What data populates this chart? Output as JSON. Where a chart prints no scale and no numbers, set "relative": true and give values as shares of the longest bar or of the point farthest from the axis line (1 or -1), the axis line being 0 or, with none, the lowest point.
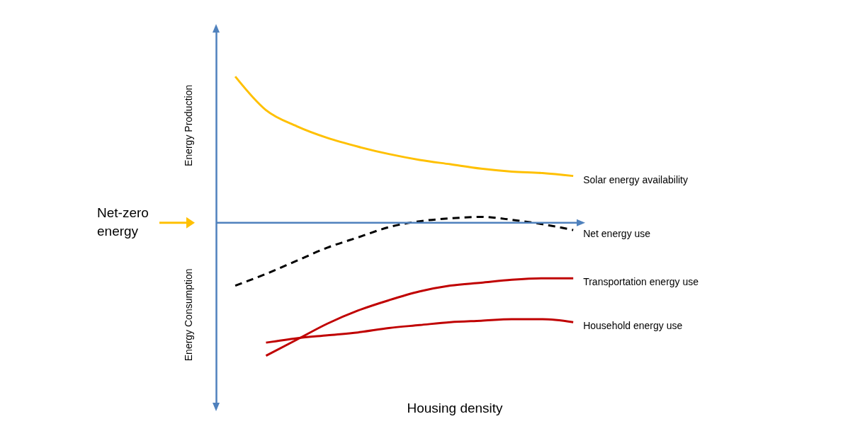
{
  "chart_data": {
    "type": "line",
    "relative": true,
    "xlabel": "Housing density",
    "categories": [
      null,
      null,
      null,
      null,
      null,
      null,
      null,
      null,
      null,
      null,
      null,
      null
    ],
    "series": [
      {
        "name": "Solar energy availability",
        "color": "#ffc000",
        "values": [
          1.0,
          0.77,
          0.66,
          0.58,
          0.52,
          0.47,
          0.43,
          0.4,
          0.37,
          0.35,
          0.34,
          0.32
        ]
      },
      {
        "name": "Net energy use",
        "color": "#000000",
        "line_style": "dashed",
        "values": [
          -0.43,
          -0.35,
          -0.26,
          -0.17,
          -0.1,
          -0.03,
          0.01,
          0.03,
          0.04,
          0.02,
          -0.01,
          -0.05
        ]
      },
      {
        "name": "Transportation  energy use",
        "color": "#c00000",
        "values": [
          null,
          -0.91,
          -0.8,
          -0.69,
          -0.6,
          -0.53,
          -0.47,
          -0.43,
          -0.41,
          -0.39,
          -0.38,
          -0.38
        ]
      },
      {
        "name": "Household energy use",
        "color": "#c00000",
        "values": [
          null,
          -0.82,
          -0.79,
          -0.77,
          -0.75,
          -0.72,
          -0.7,
          -0.68,
          -0.67,
          -0.66,
          -0.66,
          -0.68
        ]
      }
    ],
    "annotations": [
      "Energy Production",
      "Energy Consumption",
      "Net-zero energy"
    ],
    "ref_lines": [
      {
        "axis": "y",
        "value": 0,
        "color": "#4f81bd"
      }
    ]
  }
}
